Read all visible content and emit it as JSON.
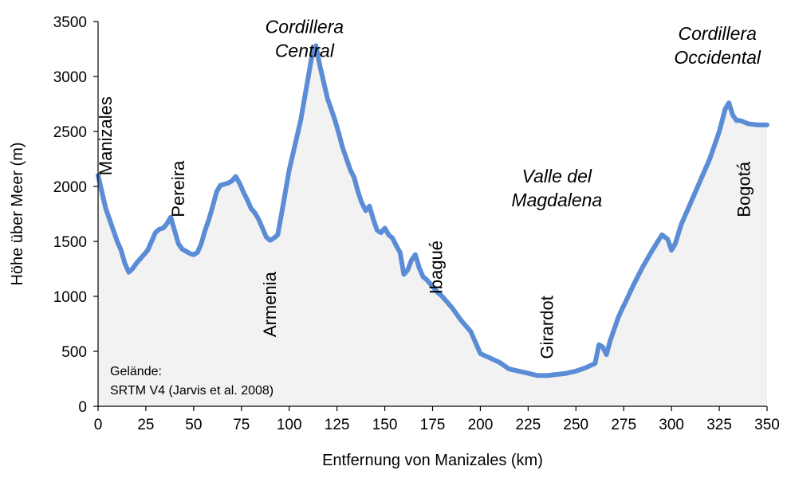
{
  "chart_data": {
    "type": "area",
    "title": "",
    "xlabel": "Entfernung von Manizales (km)",
    "ylabel": "Höhe über Meer (m)",
    "xlim": [
      0,
      350
    ],
    "ylim": [
      0,
      3500
    ],
    "xticks": [
      0,
      25,
      50,
      75,
      100,
      125,
      150,
      175,
      200,
      225,
      250,
      275,
      300,
      325,
      350
    ],
    "yticks": [
      0,
      500,
      1000,
      1500,
      2000,
      2500,
      3000,
      3500
    ],
    "grid": false,
    "colors": {
      "line": "#5b8dd6",
      "fill": "#f2f2f2",
      "axis": "#000000"
    },
    "series": [
      {
        "x": [
          0,
          2,
          4,
          6,
          8,
          10,
          12,
          14,
          16,
          18,
          20,
          22,
          24,
          26,
          28,
          30,
          32,
          34,
          36,
          38,
          40,
          42,
          44,
          46,
          48,
          50,
          52,
          54,
          56,
          58,
          60,
          62,
          64,
          66,
          68,
          70,
          72,
          74,
          76,
          78,
          80,
          82,
          84,
          86,
          88,
          90,
          92,
          94,
          96,
          98,
          100,
          102,
          104,
          106,
          108,
          110,
          112,
          114,
          116,
          118,
          120,
          122,
          124,
          126,
          128,
          130,
          132,
          134,
          136,
          138,
          140,
          142,
          144,
          146,
          148,
          150,
          152,
          154,
          156,
          158,
          160,
          162,
          164,
          166,
          168,
          170,
          172,
          174,
          176,
          178,
          180,
          185,
          190,
          195,
          200,
          205,
          210,
          215,
          220,
          225,
          230,
          235,
          240,
          245,
          250,
          255,
          260,
          262,
          264,
          266,
          268,
          270,
          272,
          274,
          276,
          280,
          285,
          290,
          295,
          298,
          300,
          302,
          305,
          310,
          315,
          320,
          325,
          328,
          330,
          332,
          334,
          336,
          340,
          345,
          350
        ],
        "y": [
          2100,
          1950,
          1800,
          1700,
          1600,
          1500,
          1420,
          1300,
          1220,
          1250,
          1300,
          1340,
          1380,
          1420,
          1500,
          1580,
          1610,
          1620,
          1660,
          1720,
          1600,
          1480,
          1430,
          1410,
          1390,
          1380,
          1400,
          1480,
          1600,
          1700,
          1820,
          1950,
          2010,
          2020,
          2030,
          2050,
          2090,
          2030,
          1950,
          1880,
          1800,
          1760,
          1700,
          1620,
          1540,
          1510,
          1530,
          1560,
          1750,
          1950,
          2150,
          2300,
          2450,
          2600,
          2800,
          3000,
          3200,
          3280,
          3100,
          2950,
          2800,
          2700,
          2600,
          2480,
          2350,
          2250,
          2150,
          2080,
          1950,
          1850,
          1780,
          1820,
          1700,
          1600,
          1580,
          1620,
          1560,
          1530,
          1460,
          1400,
          1200,
          1240,
          1330,
          1380,
          1260,
          1180,
          1150,
          1110,
          1070,
          1030,
          1000,
          900,
          780,
          680,
          480,
          440,
          400,
          340,
          320,
          300,
          280,
          280,
          290,
          300,
          320,
          350,
          390,
          560,
          540,
          470,
          600,
          700,
          800,
          880,
          950,
          1100,
          1270,
          1420,
          1560,
          1520,
          1420,
          1480,
          1650,
          1850,
          2050,
          2250,
          2500,
          2700,
          2760,
          2650,
          2600,
          2600,
          2570,
          2560,
          2560
        ]
      }
    ],
    "annotations": {
      "places": [
        {
          "label": "Manizales",
          "x": 7,
          "y": 2100
        },
        {
          "label": "Pereira",
          "x": 45,
          "y": 1720
        },
        {
          "label": "Armenia",
          "x": 93,
          "y": 630
        },
        {
          "label": "Ibagué",
          "x": 180,
          "y": 1020
        },
        {
          "label": "Girardot",
          "x": 238,
          "y": 430
        },
        {
          "label": "Bogotá",
          "x": 341,
          "y": 1720
        }
      ],
      "regions": [
        {
          "line1": "Cordillera",
          "line2": "Central",
          "x": 108,
          "y": 3395
        },
        {
          "line1": "Valle del",
          "line2": "Magdalena",
          "x": 240,
          "y": 2035
        },
        {
          "line1": "Cordillera",
          "line2": "Occidental",
          "x": 324,
          "y": 3335
        }
      ],
      "note_line1": "Gelände:",
      "note_line2": "SRTM V4 (Jarvis et al. 2008)"
    }
  }
}
